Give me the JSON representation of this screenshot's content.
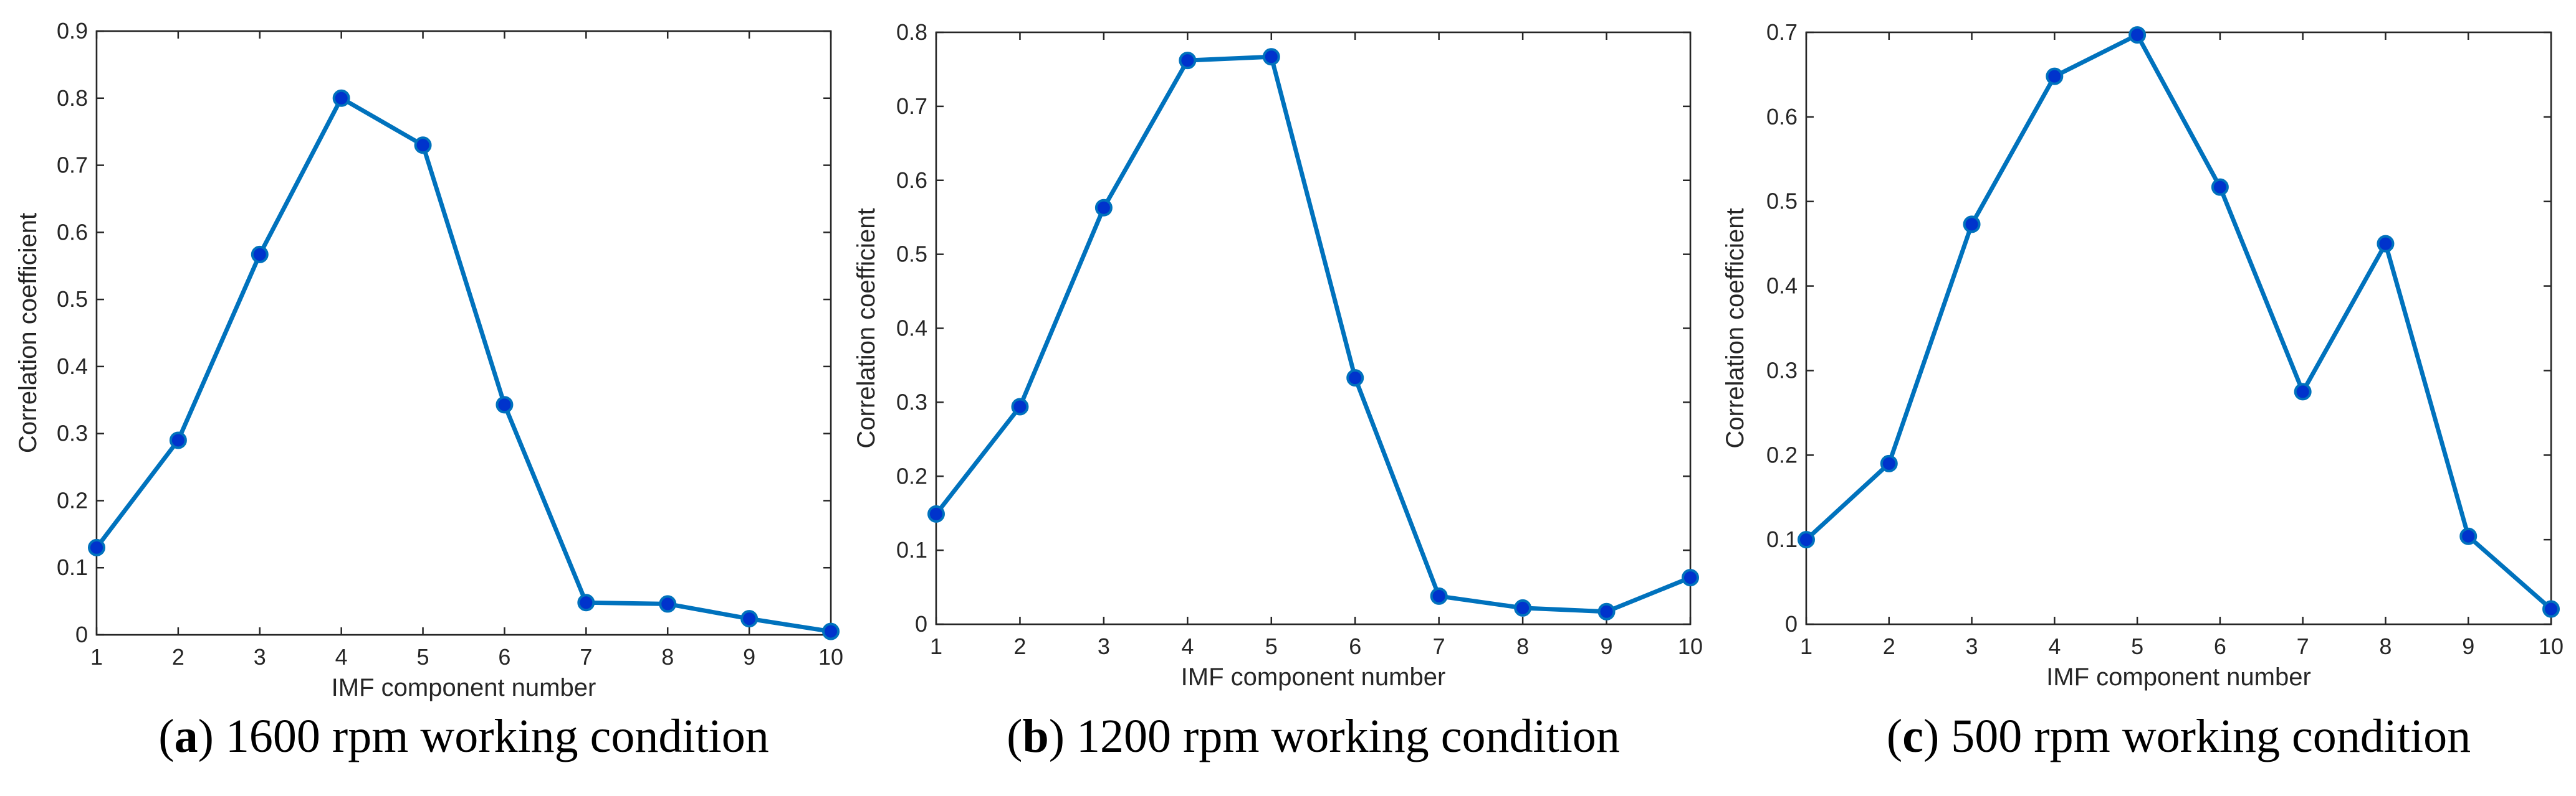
{
  "colors": {
    "line": "#0072BD",
    "marker_fill": "#0033CC",
    "marker_edge": "#0072BD"
  },
  "chart_data": [
    {
      "type": "line",
      "caption_letter": "a",
      "caption_text": "1600 rpm working condition",
      "xlabel": "IMF component number",
      "ylabel": "Correlation coefficient",
      "xlim": [
        1,
        10
      ],
      "ylim": [
        0,
        0.9
      ],
      "xticks": [
        "1",
        "2",
        "3",
        "4",
        "5",
        "6",
        "7",
        "8",
        "9",
        "10"
      ],
      "yticks": [
        "0",
        "0.1",
        "0.2",
        "0.3",
        "0.4",
        "0.5",
        "0.6",
        "0.7",
        "0.8",
        "0.9"
      ],
      "grid": true,
      "x": [
        1,
        2,
        3,
        4,
        5,
        6,
        7,
        8,
        9,
        10
      ],
      "values": [
        0.13,
        0.29,
        0.567,
        0.8,
        0.73,
        0.343,
        0.048,
        0.046,
        0.024,
        0.005
      ]
    },
    {
      "type": "line",
      "caption_letter": "b",
      "caption_text": "1200 rpm working condition",
      "xlabel": "IMF component number",
      "ylabel": "Correlation coefficient",
      "xlim": [
        1,
        10
      ],
      "ylim": [
        0,
        0.8
      ],
      "xticks": [
        "1",
        "2",
        "3",
        "4",
        "5",
        "6",
        "7",
        "8",
        "9",
        "10"
      ],
      "yticks": [
        "0",
        "0.1",
        "0.2",
        "0.3",
        "0.4",
        "0.5",
        "0.6",
        "0.7",
        "0.8"
      ],
      "grid": true,
      "x": [
        1,
        2,
        3,
        4,
        5,
        6,
        7,
        8,
        9,
        10
      ],
      "values": [
        0.149,
        0.294,
        0.563,
        0.762,
        0.767,
        0.333,
        0.038,
        0.022,
        0.017,
        0.063
      ]
    },
    {
      "type": "line",
      "caption_letter": "c",
      "caption_text": "500 rpm working condition",
      "xlabel": "IMF component number",
      "ylabel": "Correlation coefficient",
      "xlim": [
        1,
        10
      ],
      "ylim": [
        0,
        0.7
      ],
      "xticks": [
        "1",
        "2",
        "3",
        "4",
        "5",
        "6",
        "7",
        "8",
        "9",
        "10"
      ],
      "yticks": [
        "0",
        "0.1",
        "0.2",
        "0.3",
        "0.4",
        "0.5",
        "0.6",
        "0.7"
      ],
      "grid": true,
      "x": [
        1,
        2,
        3,
        4,
        5,
        6,
        7,
        8,
        9,
        10
      ],
      "values": [
        0.1,
        0.19,
        0.473,
        0.648,
        0.697,
        0.517,
        0.275,
        0.45,
        0.104,
        0.018
      ]
    }
  ]
}
